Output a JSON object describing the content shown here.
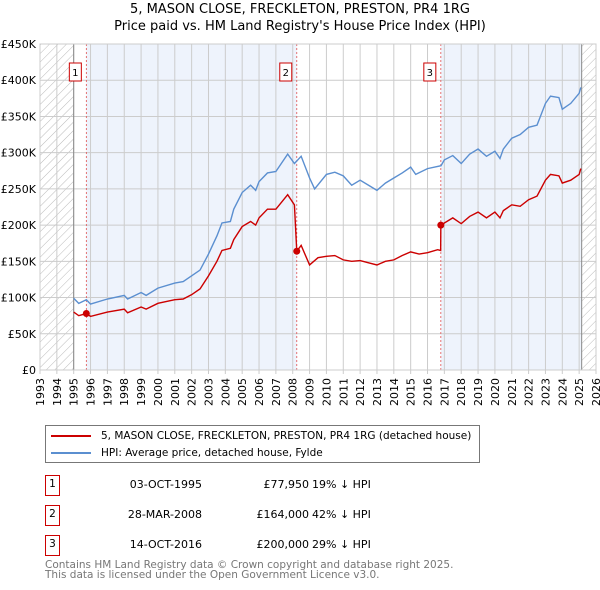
{
  "chart_data": {
    "type": "line",
    "title": "5, MASON CLOSE, FRECKLETON, PRESTON, PR4 1RG",
    "subtitle": "Price paid vs. HM Land Registry's House Price Index (HPI)",
    "xlim": [
      1993,
      2026
    ],
    "ylim": [
      0,
      450000
    ],
    "x_ticks": [
      "1993",
      "1994",
      "1995",
      "1996",
      "1997",
      "1998",
      "1999",
      "2000",
      "2001",
      "2002",
      "2003",
      "2004",
      "2005",
      "2006",
      "2007",
      "2008",
      "2009",
      "2010",
      "2011",
      "2012",
      "2013",
      "2014",
      "2015",
      "2016",
      "2017",
      "2018",
      "2019",
      "2020",
      "2021",
      "2022",
      "2023",
      "2024",
      "2025",
      "2026"
    ],
    "y_ticks": [
      "£0",
      "£50K",
      "£100K",
      "£150K",
      "£200K",
      "£250K",
      "£300K",
      "£350K",
      "£400K",
      "£450K"
    ],
    "series": [
      {
        "name": "5, MASON CLOSE, FRECKLETON, PRESTON, PR4 1RG (detached house)",
        "color": "#cc0000",
        "points": [
          [
            1995,
            80
          ],
          [
            1995.3,
            75
          ],
          [
            1995.75,
            77.95
          ],
          [
            1996,
            74
          ],
          [
            1997,
            80
          ],
          [
            1998,
            84
          ],
          [
            1998.2,
            79
          ],
          [
            1999,
            87
          ],
          [
            1999.3,
            84
          ],
          [
            2000,
            92
          ],
          [
            2001,
            97
          ],
          [
            2001.5,
            98
          ],
          [
            2002,
            104
          ],
          [
            2002.5,
            112
          ],
          [
            2003,
            130
          ],
          [
            2003.5,
            150
          ],
          [
            2003.8,
            165
          ],
          [
            2004.3,
            168
          ],
          [
            2004.5,
            180
          ],
          [
            2005,
            198
          ],
          [
            2005.5,
            205
          ],
          [
            2005.8,
            200
          ],
          [
            2006,
            210
          ],
          [
            2006.5,
            222
          ],
          [
            2007,
            222
          ],
          [
            2007.7,
            242
          ],
          [
            2008.1,
            228
          ],
          [
            2008.24,
            164
          ],
          [
            2008.5,
            172
          ],
          [
            2009,
            145
          ],
          [
            2009.5,
            155
          ],
          [
            2010,
            157
          ],
          [
            2010.5,
            158
          ],
          [
            2011,
            152
          ],
          [
            2011.5,
            150
          ],
          [
            2012,
            151
          ],
          [
            2012.5,
            148
          ],
          [
            2013,
            145
          ],
          [
            2013.5,
            150
          ],
          [
            2014,
            152
          ],
          [
            2014.5,
            158
          ],
          [
            2015,
            163
          ],
          [
            2015.5,
            160
          ],
          [
            2016,
            162
          ],
          [
            2016.6,
            166
          ],
          [
            2016.78,
            165
          ],
          [
            2016.79,
            200
          ],
          [
            2017.5,
            210
          ],
          [
            2018,
            202
          ],
          [
            2018.5,
            212
          ],
          [
            2019,
            218
          ],
          [
            2019.5,
            210
          ],
          [
            2020,
            218
          ],
          [
            2020.3,
            210
          ],
          [
            2020.5,
            220
          ],
          [
            2021,
            228
          ],
          [
            2021.5,
            226
          ],
          [
            2022,
            235
          ],
          [
            2022.5,
            240
          ],
          [
            2023,
            262
          ],
          [
            2023.3,
            270
          ],
          [
            2023.8,
            268
          ],
          [
            2024,
            258
          ],
          [
            2024.5,
            262
          ],
          [
            2025,
            270
          ],
          [
            2025.1,
            278
          ]
        ]
      },
      {
        "name": "HPI: Average price, detached house, Fylde",
        "color": "#5b8fd0",
        "points": [
          [
            1995,
            99
          ],
          [
            1995.3,
            92
          ],
          [
            1995.75,
            97
          ],
          [
            1996,
            91
          ],
          [
            1997,
            98
          ],
          [
            1998,
            103
          ],
          [
            1998.2,
            98
          ],
          [
            1999,
            107
          ],
          [
            1999.3,
            103
          ],
          [
            2000,
            113
          ],
          [
            2001,
            120
          ],
          [
            2001.5,
            122
          ],
          [
            2002,
            130
          ],
          [
            2002.5,
            138
          ],
          [
            2003,
            160
          ],
          [
            2003.5,
            185
          ],
          [
            2003.8,
            203
          ],
          [
            2004.3,
            205
          ],
          [
            2004.5,
            222
          ],
          [
            2005,
            245
          ],
          [
            2005.5,
            255
          ],
          [
            2005.8,
            248
          ],
          [
            2006,
            260
          ],
          [
            2006.5,
            272
          ],
          [
            2007,
            274
          ],
          [
            2007.7,
            298
          ],
          [
            2008.1,
            285
          ],
          [
            2008.5,
            295
          ],
          [
            2009,
            265
          ],
          [
            2009.3,
            250
          ],
          [
            2010,
            270
          ],
          [
            2010.5,
            273
          ],
          [
            2011,
            268
          ],
          [
            2011.5,
            255
          ],
          [
            2012,
            262
          ],
          [
            2012.5,
            255
          ],
          [
            2013,
            248
          ],
          [
            2013.5,
            258
          ],
          [
            2014,
            265
          ],
          [
            2014.5,
            272
          ],
          [
            2015,
            280
          ],
          [
            2015.3,
            270
          ],
          [
            2016,
            278
          ],
          [
            2016.8,
            282
          ],
          [
            2017,
            290
          ],
          [
            2017.5,
            296
          ],
          [
            2018,
            285
          ],
          [
            2018.5,
            298
          ],
          [
            2019,
            305
          ],
          [
            2019.5,
            295
          ],
          [
            2020,
            302
          ],
          [
            2020.3,
            292
          ],
          [
            2020.5,
            305
          ],
          [
            2021,
            320
          ],
          [
            2021.5,
            325
          ],
          [
            2022,
            335
          ],
          [
            2022.5,
            338
          ],
          [
            2023,
            368
          ],
          [
            2023.3,
            378
          ],
          [
            2023.8,
            376
          ],
          [
            2024,
            360
          ],
          [
            2024.5,
            368
          ],
          [
            2025,
            382
          ],
          [
            2025.1,
            390
          ]
        ]
      }
    ],
    "sales": [
      {
        "id": "1",
        "x": 1995.75,
        "y": 77.95
      },
      {
        "id": "2",
        "x": 2008.24,
        "y": 164
      },
      {
        "id": "3",
        "x": 2016.79,
        "y": 200
      }
    ]
  },
  "legend": [
    "5, MASON CLOSE, FRECKLETON, PRESTON, PR4 1RG (detached house)",
    "HPI: Average price, detached house, Fylde"
  ],
  "table": [
    {
      "id": "1",
      "date": "03-OCT-1995",
      "price": "£77,950",
      "hpi": "19% ↓ HPI"
    },
    {
      "id": "2",
      "date": "28-MAR-2008",
      "price": "£164,000",
      "hpi": "42% ↓ HPI"
    },
    {
      "id": "3",
      "date": "14-OCT-2016",
      "price": "£200,000",
      "hpi": "29% ↓ HPI"
    }
  ],
  "footer": [
    "Contains HM Land Registry data © Crown copyright and database right 2025.",
    "This data is licensed under the Open Government Licence v3.0."
  ]
}
